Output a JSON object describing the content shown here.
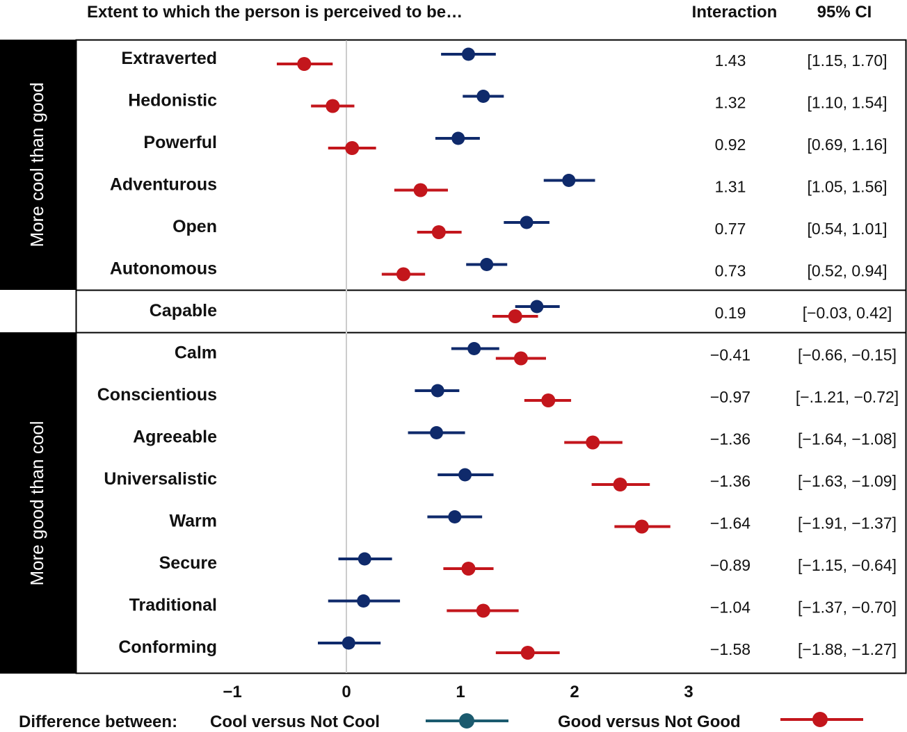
{
  "colors": {
    "cool": "#0f2a6b",
    "good": "#c3161c",
    "legend_cool": "#1b5a6e",
    "band": "#000000",
    "zero_line": "#cccccc"
  },
  "header": {
    "title": "Extent to which the person is perceived to be…",
    "interaction_label": "Interaction",
    "ci_label": "95% CI"
  },
  "groups": [
    {
      "label": "More cool than good",
      "rows": [
        "Extraverted",
        "Autonomous"
      ]
    },
    {
      "label": "",
      "rows": [
        "Capable",
        "Capable"
      ]
    },
    {
      "label": "More good than cool",
      "rows": [
        "Calm",
        "Conforming"
      ]
    }
  ],
  "legend": {
    "prefix": "Difference between:",
    "cool_label": "Cool versus Not Cool",
    "good_label": "Good versus Not Good"
  },
  "chart_data": {
    "type": "forest",
    "x_ticks": [
      "−1",
      "0",
      "1",
      "2",
      "3"
    ],
    "x_tick_values": [
      -1,
      0,
      1,
      2,
      3
    ],
    "zero_line": true,
    "legend_position": "bottom",
    "rows": [
      {
        "label": "Extraverted",
        "cool": [
          1.07,
          0.83,
          1.31
        ],
        "good": [
          -0.37,
          -0.61,
          -0.12
        ],
        "interaction": "1.43",
        "ci": "[1.15, 1.70]"
      },
      {
        "label": "Hedonistic",
        "cool": [
          1.2,
          1.02,
          1.38
        ],
        "good": [
          -0.12,
          -0.31,
          0.07
        ],
        "interaction": "1.32",
        "ci": "[1.10, 1.54]"
      },
      {
        "label": "Powerful",
        "cool": [
          0.98,
          0.78,
          1.17
        ],
        "good": [
          0.05,
          -0.16,
          0.26
        ],
        "interaction": "0.92",
        "ci": "[0.69, 1.16]"
      },
      {
        "label": "Adventurous",
        "cool": [
          1.95,
          1.73,
          2.18
        ],
        "good": [
          0.65,
          0.42,
          0.89
        ],
        "interaction": "1.31",
        "ci": "[1.05, 1.56]"
      },
      {
        "label": "Open",
        "cool": [
          1.58,
          1.38,
          1.78
        ],
        "good": [
          0.81,
          0.62,
          1.01
        ],
        "interaction": "0.77",
        "ci": "[0.54, 1.01]"
      },
      {
        "label": "Autonomous",
        "cool": [
          1.23,
          1.05,
          1.41
        ],
        "good": [
          0.5,
          0.31,
          0.69
        ],
        "interaction": "0.73",
        "ci": "[0.52, 0.94]"
      },
      {
        "label": "Capable",
        "cool": [
          1.67,
          1.48,
          1.87
        ],
        "good": [
          1.48,
          1.28,
          1.68
        ],
        "interaction": "0.19",
        "ci": "[−0.03, 0.42]"
      },
      {
        "label": "Calm",
        "cool": [
          1.12,
          0.92,
          1.34
        ],
        "good": [
          1.53,
          1.31,
          1.75
        ],
        "interaction": "−0.41",
        "ci": "[−0.66, −0.15]"
      },
      {
        "label": "Conscientious",
        "cool": [
          0.8,
          0.6,
          0.99
        ],
        "good": [
          1.77,
          1.56,
          1.97
        ],
        "interaction": "−0.97",
        "ci": "[−.1.21, −0.72]"
      },
      {
        "label": "Agreeable",
        "cool": [
          0.79,
          0.54,
          1.04
        ],
        "good": [
          2.16,
          1.91,
          2.42
        ],
        "interaction": "−1.36",
        "ci": "[−1.64, −1.08]"
      },
      {
        "label": "Universalistic",
        "cool": [
          1.04,
          0.8,
          1.29
        ],
        "good": [
          2.4,
          2.15,
          2.66
        ],
        "interaction": "−1.36",
        "ci": "[−1.63, −1.09]"
      },
      {
        "label": "Warm",
        "cool": [
          0.95,
          0.71,
          1.19
        ],
        "good": [
          2.59,
          2.35,
          2.84
        ],
        "interaction": "−1.64",
        "ci": "[−1.91, −1.37]"
      },
      {
        "label": "Secure",
        "cool": [
          0.16,
          -0.07,
          0.4
        ],
        "good": [
          1.07,
          0.85,
          1.29
        ],
        "interaction": "−0.89",
        "ci": "[−1.15, −0.64]"
      },
      {
        "label": "Traditional",
        "cool": [
          0.15,
          -0.16,
          0.47
        ],
        "good": [
          1.2,
          0.88,
          1.51
        ],
        "interaction": "−1.04",
        "ci": "[−1.37, −0.70]"
      },
      {
        "label": "Conforming",
        "cool": [
          0.02,
          -0.25,
          0.3
        ],
        "good": [
          1.59,
          1.31,
          1.87
        ],
        "interaction": "−1.58",
        "ci": "[−1.88, −1.27]"
      }
    ]
  }
}
